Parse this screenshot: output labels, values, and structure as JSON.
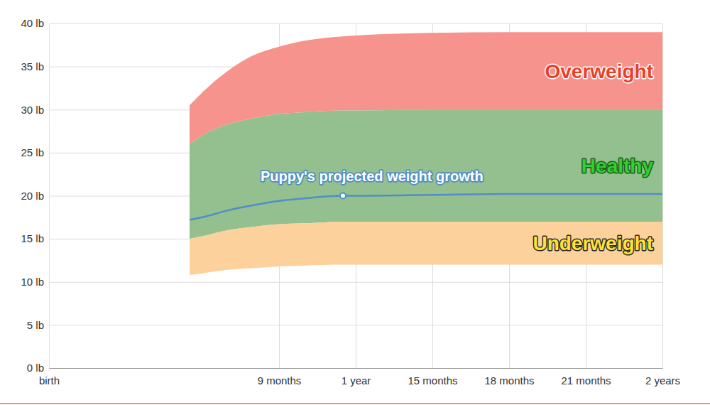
{
  "chart_data": {
    "type": "line",
    "x": [
      5.5,
      6,
      7,
      8,
      9,
      10,
      11.5,
      12,
      15,
      18,
      21,
      24
    ],
    "xlim": [
      0,
      24
    ],
    "xticks": [
      {
        "value": 0,
        "label": "birth"
      },
      {
        "value": 9,
        "label": "9 months"
      },
      {
        "value": 12,
        "label": "1 year"
      },
      {
        "value": 15,
        "label": "15 months"
      },
      {
        "value": 18,
        "label": "18 months"
      },
      {
        "value": 21,
        "label": "21 months"
      },
      {
        "value": 24,
        "label": "2 years"
      }
    ],
    "ylim": [
      0,
      40
    ],
    "yticks": [
      {
        "value": 0,
        "label": "0 lb"
      },
      {
        "value": 5,
        "label": "5 lb"
      },
      {
        "value": 10,
        "label": "10 lb"
      },
      {
        "value": 15,
        "label": "15 lb"
      },
      {
        "value": 20,
        "label": "20 lb"
      },
      {
        "value": 25,
        "label": "25 lb"
      },
      {
        "value": 30,
        "label": "30 lb"
      },
      {
        "value": 35,
        "label": "35 lb"
      },
      {
        "value": 40,
        "label": "40 lb"
      }
    ],
    "grid": true,
    "series": [
      {
        "name": "Overweight",
        "type": "area",
        "color": "#f6938d",
        "high": [
          30.5,
          32,
          34.5,
          36.3,
          37.3,
          38,
          38.5,
          38.6,
          38.9,
          39,
          39,
          39
        ],
        "low": [
          26,
          27,
          28.3,
          29,
          29.5,
          29.7,
          29.9,
          29.9,
          30,
          30,
          30,
          30
        ]
      },
      {
        "name": "Healthy",
        "type": "area",
        "color": "#93c08e",
        "high": [
          26,
          27,
          28.3,
          29,
          29.5,
          29.7,
          29.9,
          29.9,
          30,
          30,
          30,
          30
        ],
        "low": [
          15,
          15.3,
          16,
          16.4,
          16.7,
          16.8,
          17,
          17,
          17,
          17,
          17,
          17
        ]
      },
      {
        "name": "Underweight",
        "type": "area",
        "color": "#fcd19c",
        "high": [
          15,
          15.3,
          16,
          16.4,
          16.7,
          16.8,
          17,
          17,
          17,
          17,
          17,
          17
        ],
        "low": [
          10.8,
          11,
          11.4,
          11.6,
          11.8,
          11.9,
          12,
          12,
          12,
          12,
          12,
          12
        ]
      },
      {
        "name": "Puppy's projected weight growth",
        "type": "line",
        "color": "#4f8ec6",
        "values": [
          17.2,
          17.5,
          18.3,
          18.9,
          19.4,
          19.7,
          20,
          20,
          20.1,
          20.2,
          20.2,
          20.2
        ]
      },
      {
        "type": "scatter",
        "color": "#4f8ec6",
        "marker": "circle",
        "values": [
          null,
          null,
          null,
          null,
          null,
          null,
          20,
          null,
          null,
          null,
          null,
          null
        ]
      }
    ]
  }
}
